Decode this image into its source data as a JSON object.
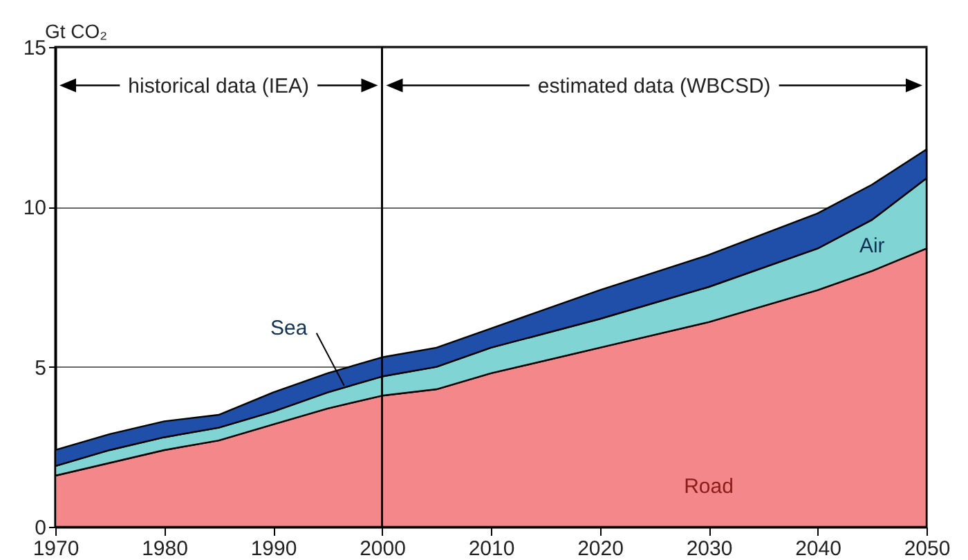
{
  "chart_data": {
    "type": "area",
    "stacked": true,
    "ylabel": "Gt CO₂",
    "x": [
      1970,
      1975,
      1980,
      1985,
      1990,
      1995,
      2000,
      2005,
      2010,
      2020,
      2030,
      2040,
      2045,
      2050
    ],
    "series": [
      {
        "name": "Road",
        "color": "#f4878a",
        "values": [
          1.6,
          2.0,
          2.4,
          2.7,
          3.2,
          3.7,
          4.1,
          4.3,
          4.8,
          5.6,
          6.4,
          7.4,
          8.0,
          8.7
        ]
      },
      {
        "name": "Air",
        "color": "#80d4d4",
        "values": [
          0.3,
          0.4,
          0.4,
          0.4,
          0.4,
          0.5,
          0.6,
          0.7,
          0.8,
          0.9,
          1.1,
          1.3,
          1.6,
          2.2
        ]
      },
      {
        "name": "Sea",
        "color": "#1f4fa8",
        "values": [
          0.5,
          0.5,
          0.5,
          0.4,
          0.6,
          0.6,
          0.6,
          0.6,
          0.6,
          0.9,
          1.0,
          1.1,
          1.1,
          0.9
        ]
      }
    ],
    "xlim": [
      1970,
      2050
    ],
    "xticks": [
      1970,
      1980,
      1990,
      2000,
      2010,
      2020,
      2030,
      2040,
      2050
    ],
    "ylim": [
      0,
      15
    ],
    "yticks": [
      0,
      5,
      10,
      15
    ],
    "grid": "y",
    "ref_lines": [
      {
        "axis": "x",
        "value": 2000,
        "color": "#000000"
      }
    ],
    "annotations": [
      "historical data (IEA)",
      "estimated data (WBCSD)"
    ]
  }
}
